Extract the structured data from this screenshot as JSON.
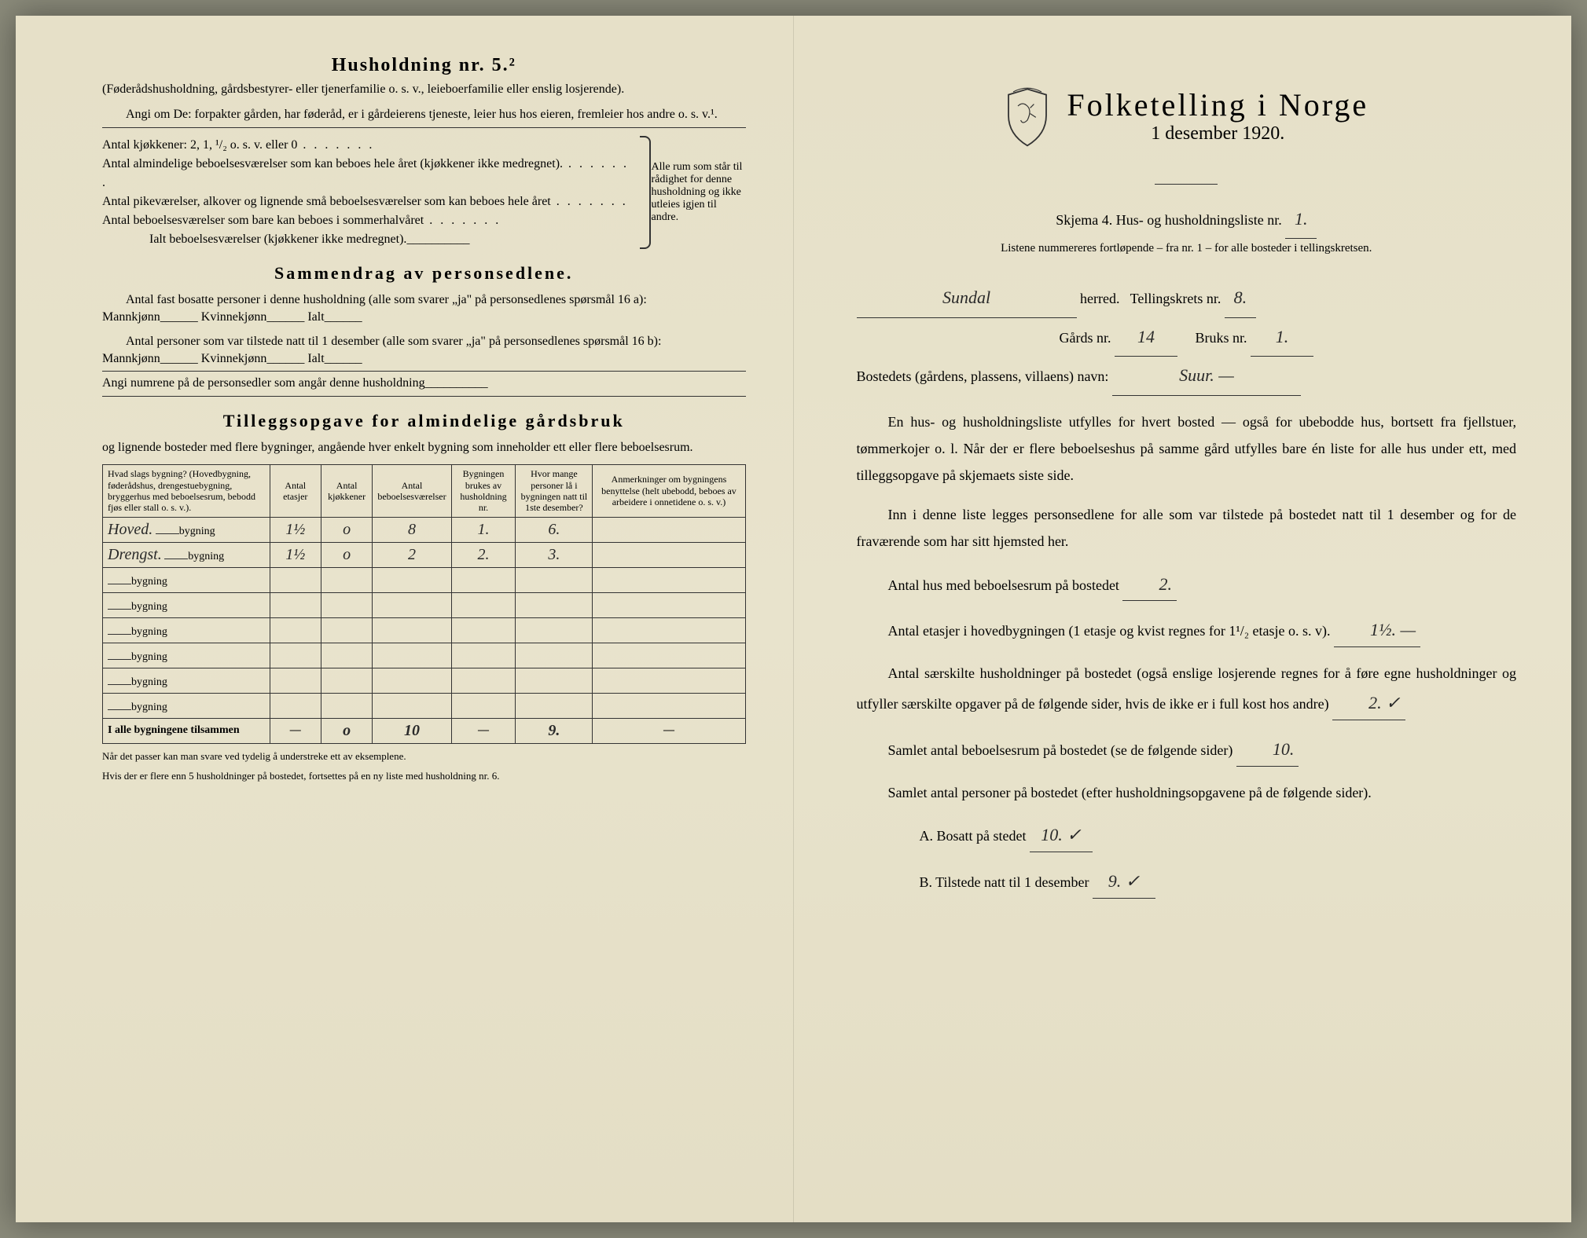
{
  "left": {
    "household_title": "Husholdning nr. 5.²",
    "household_sub": "(Føderådshusholdning, gårdsbestyrer- eller tjenerfamilie o. s. v., leieboerfamilie eller enslig losjerende).",
    "angi_text": "Angi om De: forpakter gården, har føderåd, er i gårdeierens tjeneste, leier hus hos eieren, fremleier hos andre o. s. v.¹.",
    "kitchen_line": "Antal kjøkkener: 2, 1, ¹/₂ o. s. v. eller 0",
    "room_lines": [
      "Antal almindelige beboelsesværelser som kan beboes hele året (kjøkkener ikke medregnet).",
      "Antal pikeværelser, alkover og lignende små beboelsesværelser som kan beboes hele året",
      "Antal beboelsesværelser som bare kan beboes i sommerhalvåret"
    ],
    "ialt_line": "Ialt beboelsesværelser (kjøkkener ikke medregnet).",
    "brace_text": "Alle rum som står til rådighet for denne husholdning og ikke utleies igjen til andre.",
    "sammendrag_title": "Sammendrag av personsedlene.",
    "sammendrag_p1": "Antal fast bosatte personer i denne husholdning (alle som svarer „ja\" på personsedlenes spørsmål 16 a): Mannkjønn______ Kvinnekjønn______ Ialt______",
    "sammendrag_p2": "Antal personer som var tilstede natt til 1 desember (alle som svarer „ja\" på personsedlenes spørsmål 16 b): Mannkjønn______ Kvinnekjønn______ Ialt______",
    "angi_numrene": "Angi numrene på de personsedler som angår denne husholdning",
    "tillegg_title": "Tilleggsopgave for almindelige gårdsbruk",
    "tillegg_sub": "og lignende bosteder med flere bygninger, angående hver enkelt bygning som inneholder ett eller flere beboelsesrum.",
    "table": {
      "headers": [
        "Hvad slags bygning?\n(Hovedbygning, føderådshus, drengestuebygning, bryggerhus med beboelsesrum, bebodd fjøs eller stall o. s. v.).",
        "Antal etasjer",
        "Antal kjøkkener",
        "Antal beboelsesværelser",
        "Bygningen brukes av husholdning nr.",
        "Hvor mange personer lå i bygningen natt til 1ste desember?",
        "Anmerkninger om bygningens benyttelse (helt ubebodd, beboes av arbeidere i onnetidene o. s. v.)"
      ],
      "rows": [
        {
          "name": "Hoved.",
          "suffix": "bygning",
          "etasjer": "1½",
          "kjokken": "o",
          "rooms": "8",
          "hushold": "1.",
          "persons": "6.",
          "remarks": ""
        },
        {
          "name": "Drengst.",
          "suffix": "bygning",
          "etasjer": "1½",
          "kjokken": "o",
          "rooms": "2",
          "hushold": "2.",
          "persons": "3.",
          "remarks": ""
        },
        {
          "name": "",
          "suffix": "bygning",
          "etasjer": "",
          "kjokken": "",
          "rooms": "",
          "hushold": "",
          "persons": "",
          "remarks": ""
        },
        {
          "name": "",
          "suffix": "bygning",
          "etasjer": "",
          "kjokken": "",
          "rooms": "",
          "hushold": "",
          "persons": "",
          "remarks": ""
        },
        {
          "name": "",
          "suffix": "bygning",
          "etasjer": "",
          "kjokken": "",
          "rooms": "",
          "hushold": "",
          "persons": "",
          "remarks": ""
        },
        {
          "name": "",
          "suffix": "bygning",
          "etasjer": "",
          "kjokken": "",
          "rooms": "",
          "hushold": "",
          "persons": "",
          "remarks": ""
        },
        {
          "name": "",
          "suffix": "bygning",
          "etasjer": "",
          "kjokken": "",
          "rooms": "",
          "hushold": "",
          "persons": "",
          "remarks": ""
        },
        {
          "name": "",
          "suffix": "bygning",
          "etasjer": "",
          "kjokken": "",
          "rooms": "",
          "hushold": "",
          "persons": "",
          "remarks": ""
        }
      ],
      "footer_label": "I alle bygningene tilsammen",
      "footer": {
        "etasjer": "—",
        "kjokken": "o",
        "rooms": "10",
        "hushold": "—",
        "persons": "9.",
        "remarks": "—"
      }
    },
    "footnote1": "Når det passer kan man svare ved tydelig å understreke ett av eksemplene.",
    "footnote2": "Hvis der er flere enn 5 husholdninger på bostedet, fortsettes på en ny liste med husholdning nr. 6."
  },
  "right": {
    "title": "Folketelling i Norge",
    "date": "1 desember 1920.",
    "skjema_line": "Skjema 4.  Hus- og husholdningsliste nr.",
    "skjema_nr": "1.",
    "listene_note": "Listene nummereres fortløpende – fra nr. 1 – for alle bosteder i tellingskretsen.",
    "herred_name": "Sundal",
    "herred_label": "herred.",
    "tellingskrets_label": "Tellingskrets nr.",
    "tellingskrets_nr": "8.",
    "gards_label": "Gårds nr.",
    "gards_nr": "14",
    "bruks_label": "Bruks nr.",
    "bruks_nr": "1.",
    "bosted_label": "Bostedets (gårdens, plassens, villaens) navn:",
    "bosted_name": "Suur. —",
    "para1": "En hus- og husholdningsliste utfylles for hvert bosted — også for ubebodde hus, bortsett fra fjellstuer, tømmerkojer o. l. Når der er flere beboelseshus på samme gård utfylles bare én liste for alle hus under ett, med tilleggsopgave på skjemaets siste side.",
    "para2": "Inn i denne liste legges personsedlene for alle som var tilstede på bostedet natt til 1 desember og for de fraværende som har sitt hjemsted her.",
    "q1_label": "Antal hus med beboelsesrum på bostedet",
    "q1_val": "2.",
    "q2_label": "Antal etasjer i hovedbygningen (1 etasje og kvist regnes for 1¹/₂ etasje o. s. v).",
    "q2_val": "1½. —",
    "q3_label": "Antal særskilte husholdninger på bostedet (også enslige losjerende regnes for å føre egne husholdninger og utfyller særskilte opgaver på de følgende sider, hvis de ikke er i full kost hos andre)",
    "q3_val": "2. ✓",
    "q4_label": "Samlet antal beboelsesrum på bostedet (se de følgende sider)",
    "q4_val": "10.",
    "q5_label": "Samlet antal personer på bostedet (efter husholdningsopgavene på de følgende sider).",
    "qA_label": "A.  Bosatt på stedet",
    "qA_val": "10. ✓",
    "qB_label": "B.  Tilstede natt til 1 desember",
    "qB_val": "9. ✓"
  }
}
